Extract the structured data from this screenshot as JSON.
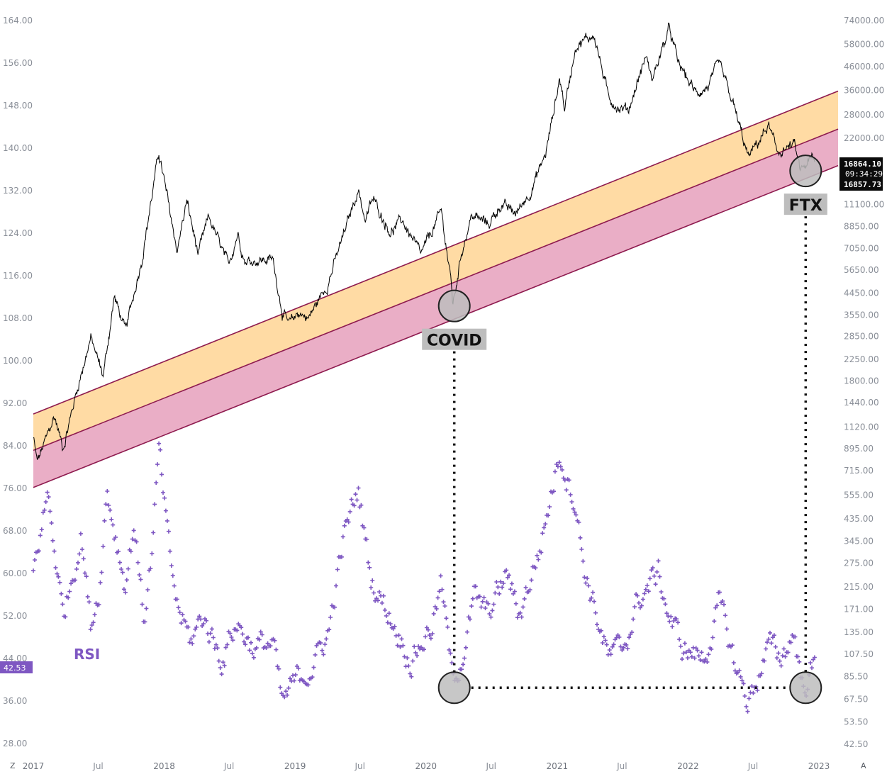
{
  "chart_data": {
    "type": "line",
    "x_ticks": [
      "2017",
      "Jul",
      "2018",
      "Jul",
      "2019",
      "Jul",
      "2020",
      "Jul",
      "2021",
      "Jul",
      "2022",
      "Jul",
      "2023"
    ],
    "left_axis": {
      "ticks": [
        "164.00",
        "156.00",
        "148.00",
        "140.00",
        "132.00",
        "124.00",
        "116.00",
        "108.00",
        "100.00",
        "92.00",
        "84.00",
        "76.00",
        "68.00",
        "60.00",
        "52.00",
        "44.00",
        "36.00",
        "28.00"
      ],
      "range": [
        28,
        164
      ]
    },
    "right_axis": {
      "scale": "log",
      "ticks": [
        "74000.00",
        "58000.00",
        "46000.00",
        "36000.00",
        "28000.00",
        "22000.00",
        "16864.10",
        "11100.00",
        "8850.00",
        "7050.00",
        "5650.00",
        "4450.00",
        "3550.00",
        "2850.00",
        "2250.00",
        "1800.00",
        "1440.00",
        "1120.00",
        "895.00",
        "715.00",
        "555.00",
        "435.00",
        "345.00",
        "275.00",
        "215.00",
        "171.00",
        "135.00",
        "107.50",
        "85.50",
        "67.50",
        "53.50",
        "42.50"
      ]
    },
    "price_series": {
      "points": [
        [
          "2017-01",
          1000
        ],
        [
          "2017-01-12",
          780
        ],
        [
          "2017-03",
          1250
        ],
        [
          "2017-03-25",
          900
        ],
        [
          "2017-05",
          1600
        ],
        [
          "2017-06-10",
          2800
        ],
        [
          "2017-07-15",
          1900
        ],
        [
          "2017-08-15",
          4300
        ],
        [
          "2017-09-15",
          3000
        ],
        [
          "2017-11-01",
          6500
        ],
        [
          "2017-12-17",
          19000
        ],
        [
          "2018-02-06",
          6900
        ],
        [
          "2018-03-05",
          11500
        ],
        [
          "2018-04-06",
          6600
        ],
        [
          "2018-05-05",
          9800
        ],
        [
          "2018-06-29",
          5900
        ],
        [
          "2018-07-25",
          8300
        ],
        [
          "2018-08-14",
          6200
        ],
        [
          "2018-10-31",
          6300
        ],
        [
          "2018-11-26",
          3700
        ],
        [
          "2018-12-15",
          3200
        ],
        [
          "2019-01-10",
          3650
        ],
        [
          "2019-02-08",
          3450
        ],
        [
          "2019-04-02",
          4900
        ],
        [
          "2019-05-15",
          8000
        ],
        [
          "2019-06-26",
          13000
        ],
        [
          "2019-07-16",
          9400
        ],
        [
          "2019-08-06",
          11800
        ],
        [
          "2019-09-25",
          8300
        ],
        [
          "2019-10-26",
          9500
        ],
        [
          "2019-12-18",
          6600
        ],
        [
          "2020-02-13",
          10400
        ],
        [
          "2020-03-12",
          4900
        ],
        [
          "2020-03-16",
          3900
        ],
        [
          "2020-04-10",
          6900
        ],
        [
          "2020-05-08",
          9900
        ],
        [
          "2020-06-25",
          9100
        ],
        [
          "2020-07-28",
          11100
        ],
        [
          "2020-09-08",
          10100
        ],
        [
          "2020-10-22",
          13000
        ],
        [
          "2020-12-01",
          19000
        ],
        [
          "2021-01-08",
          41000
        ],
        [
          "2021-01-22",
          30000
        ],
        [
          "2021-02-21",
          57000
        ],
        [
          "2021-04-14",
          64000
        ],
        [
          "2021-05-23",
          34000
        ],
        [
          "2021-06-22",
          30000
        ],
        [
          "2021-07-20",
          29800
        ],
        [
          "2021-09-06",
          52000
        ],
        [
          "2021-09-21",
          40000
        ],
        [
          "2021-11-10",
          68000
        ],
        [
          "2021-12-04",
          48000
        ],
        [
          "2022-01-22",
          35000
        ],
        [
          "2022-02-24",
          37000
        ],
        [
          "2022-03-29",
          47500
        ],
        [
          "2022-05-10",
          30000
        ],
        [
          "2022-06-18",
          18000
        ],
        [
          "2022-08-14",
          25000
        ],
        [
          "2022-09-06",
          19000
        ],
        [
          "2022-10-25",
          20500
        ],
        [
          "2022-11-09",
          15700
        ],
        [
          "2022-12-14",
          17900
        ],
        [
          "2022-12-20",
          16860
        ]
      ]
    },
    "rsi_series": {
      "points": [
        [
          "2017-01",
          60
        ],
        [
          "2017-02-10",
          75
        ],
        [
          "2017-03-25",
          52
        ],
        [
          "2017-05-15",
          68
        ],
        [
          "2017-06-10",
          50
        ],
        [
          "2017-07-05",
          58
        ],
        [
          "2017-07-25",
          76
        ],
        [
          "2017-09-15",
          58
        ],
        [
          "2017-10-10",
          70
        ],
        [
          "2017-11-05",
          51
        ],
        [
          "2017-12-01",
          66
        ],
        [
          "2017-12-17",
          83
        ],
        [
          "2018-01-15",
          63
        ],
        [
          "2018-02-06",
          54
        ],
        [
          "2018-03-15",
          47
        ],
        [
          "2018-04-20",
          52
        ],
        [
          "2018-06-10",
          44
        ],
        [
          "2018-07-20",
          51
        ],
        [
          "2018-09-10",
          46
        ],
        [
          "2018-11-01",
          47
        ],
        [
          "2018-11-25",
          35
        ],
        [
          "2019-01-10",
          40
        ],
        [
          "2019-03-01",
          44
        ],
        [
          "2019-04-05",
          49
        ],
        [
          "2019-05-15",
          66
        ],
        [
          "2019-06-26",
          76
        ],
        [
          "2019-08-01",
          59
        ],
        [
          "2019-09-25",
          52
        ],
        [
          "2019-11-20",
          44
        ],
        [
          "2020-01-15",
          50
        ],
        [
          "2020-02-13",
          58
        ],
        [
          "2020-03-16",
          39
        ],
        [
          "2020-04-15",
          46
        ],
        [
          "2020-05-15",
          55
        ],
        [
          "2020-06-20",
          52
        ],
        [
          "2020-08-15",
          60
        ],
        [
          "2020-09-15",
          52
        ],
        [
          "2020-11-15",
          65
        ],
        [
          "2021-01-08",
          83
        ],
        [
          "2021-02-21",
          74
        ],
        [
          "2021-03-15",
          62
        ],
        [
          "2021-05-23",
          44
        ],
        [
          "2021-07-01",
          45
        ],
        [
          "2021-08-15",
          55
        ],
        [
          "2021-10-10",
          60
        ],
        [
          "2021-11-10",
          52
        ],
        [
          "2021-12-15",
          46
        ],
        [
          "2022-02-15",
          44
        ],
        [
          "2022-03-29",
          54
        ],
        [
          "2022-05-15",
          42
        ],
        [
          "2022-06-18",
          36
        ],
        [
          "2022-08-14",
          46
        ],
        [
          "2022-09-15",
          44
        ],
        [
          "2022-10-25",
          49
        ],
        [
          "2022-11-15",
          39
        ],
        [
          "2022-12-20",
          42.53
        ]
      ]
    },
    "channel": {
      "start_date": "2017-01",
      "end_date": "2022-12-31",
      "upper_start": 1280,
      "upper_end": 33000,
      "mid_start": 880,
      "mid_end": 22300,
      "lower_start": 600,
      "lower_end": 15300
    },
    "annotations": {
      "covid": {
        "label": "COVID",
        "date": "2020-03-20",
        "price": 3900,
        "rsi": 38.5
      },
      "ftx": {
        "label": "FTX",
        "date": "2022-11-25",
        "price": 15700,
        "rsi": 38.5
      }
    },
    "price_tag": {
      "last": "16864.10",
      "countdown": "09:34:29",
      "close": "16857.73"
    },
    "rsi_tag": {
      "value": "42.53"
    },
    "indicator_label": "RSI",
    "corner_left": "Z",
    "corner_right": "A",
    "colors": {
      "price": "#000000",
      "rsi": "#7e57c2",
      "orange_band": "#ffdba4",
      "pink_band": "#eaaec6",
      "channel_line": "#8e1b4f",
      "callout_bg": "#bdbdbd"
    }
  }
}
